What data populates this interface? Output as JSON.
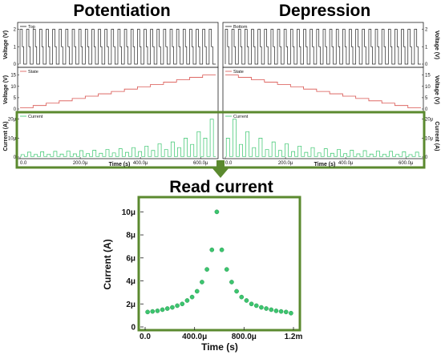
{
  "titles": {
    "potentiation": "Potentiation",
    "depression": "Depression",
    "read_current": "Read current"
  },
  "colors": {
    "panel_border": "#5b8a2f",
    "arrow": "#5b8a2f",
    "pulse_line": "#222222",
    "state_line": "#d9534f",
    "current_line": "#35c46a",
    "dot": "#3cc56f"
  },
  "chart_data": [
    {
      "type": "line",
      "panel": "potentiation-voltage",
      "legend": "Top",
      "ylabel": "Voltage (V)",
      "yticks": [
        "0",
        "1",
        "2"
      ],
      "ylim": [
        0,
        2.3
      ],
      "xlim": [
        0,
        650
      ],
      "pulse_count": 30,
      "pulse_levels": [
        0,
        1,
        2
      ]
    },
    {
      "type": "line",
      "panel": "depression-voltage",
      "legend": "Bottom",
      "ylabel": "Voltage (V)",
      "yticks": [
        "0",
        "1",
        "2"
      ],
      "ylim": [
        0,
        2.3
      ],
      "xlim": [
        0,
        650
      ],
      "pulse_count": 30,
      "pulse_levels": [
        0,
        1,
        2
      ]
    },
    {
      "type": "line",
      "panel": "potentiation-state",
      "legend": "State",
      "ylabel": "Voltage (V)",
      "yticks": [
        "0",
        "5",
        "10",
        "15"
      ],
      "ylim": [
        0,
        17
      ],
      "xlim": [
        0,
        650
      ],
      "start": 0.5,
      "end": 15
    },
    {
      "type": "line",
      "panel": "depression-state",
      "legend": "State",
      "ylabel": "Voltage (V)",
      "yticks": [
        "0",
        "5",
        "10",
        "15"
      ],
      "ylim": [
        0,
        17
      ],
      "xlim": [
        0,
        650
      ],
      "start": 15,
      "end": 0.5
    },
    {
      "type": "line",
      "panel": "potentiation-current",
      "legend": "Current",
      "ylabel": "Current (A)",
      "xlabel": "Time (s)",
      "yticks": [
        "0",
        "10μ",
        "20μ"
      ],
      "xticks": [
        "0.0",
        "200.0μ",
        "400.0μ",
        "600.0μ"
      ],
      "xtick_values": [
        0,
        200,
        400,
        600
      ],
      "ylim": [
        0,
        22
      ],
      "xlim": [
        0,
        650
      ],
      "read_level": [
        1.3,
        1.4,
        1.5,
        1.6,
        1.7,
        1.8,
        2.0,
        2.2,
        2.5,
        2.9,
        3.5,
        4.0,
        5.0,
        6.7,
        10.0
      ],
      "write_level": [
        2.6,
        2.8,
        3.0,
        3.2,
        3.4,
        3.6,
        4.0,
        4.4,
        5.0,
        5.8,
        7.0,
        8.0,
        10.0,
        13.4,
        20.0
      ]
    },
    {
      "type": "line",
      "panel": "depression-current",
      "legend": "Current",
      "ylabel": "Current (A)",
      "xlabel": "Time (s)",
      "yticks": [
        "0",
        "10μ",
        "20μ"
      ],
      "xticks": [
        "0.0",
        "200.0μ",
        "400.0μ",
        "600.0μ"
      ],
      "xtick_values": [
        0,
        200,
        400,
        600
      ],
      "ylim": [
        0,
        22
      ],
      "xlim": [
        0,
        650
      ],
      "read_level": [
        10.0,
        6.7,
        5.0,
        4.0,
        3.5,
        2.9,
        2.5,
        2.2,
        2.0,
        1.8,
        1.7,
        1.6,
        1.5,
        1.4,
        1.3
      ],
      "write_level": [
        20.0,
        13.4,
        10.0,
        8.0,
        7.0,
        5.8,
        5.0,
        4.4,
        4.0,
        3.6,
        3.4,
        3.2,
        3.0,
        2.8,
        2.6
      ]
    },
    {
      "type": "scatter",
      "panel": "read-current",
      "title": "Read current",
      "xlabel": "Time (s)",
      "ylabel": "Current (A)",
      "xlim": [
        0,
        1.2
      ],
      "ylim": [
        0,
        11
      ],
      "xticks": [
        "0.0",
        "400.0μ",
        "800.0μ",
        "1.2m"
      ],
      "xtick_values": [
        0,
        0.4,
        0.8,
        1.2
      ],
      "yticks": [
        "0",
        "2μ",
        "4μ",
        "6μ",
        "8μ",
        "10μ"
      ],
      "ytick_values": [
        0,
        2,
        4,
        6,
        8,
        10
      ],
      "x": [
        0.02,
        0.06,
        0.1,
        0.14,
        0.18,
        0.22,
        0.26,
        0.3,
        0.34,
        0.38,
        0.42,
        0.46,
        0.5,
        0.54,
        0.58,
        0.62,
        0.66,
        0.7,
        0.74,
        0.78,
        0.82,
        0.86,
        0.9,
        0.94,
        0.98,
        1.02,
        1.06,
        1.1,
        1.14,
        1.18
      ],
      "y": [
        1.3,
        1.35,
        1.4,
        1.5,
        1.6,
        1.7,
        1.85,
        2.0,
        2.3,
        2.6,
        3.1,
        3.9,
        5.0,
        6.7,
        10.0,
        6.7,
        5.0,
        3.9,
        3.1,
        2.6,
        2.3,
        2.0,
        1.85,
        1.7,
        1.6,
        1.5,
        1.4,
        1.35,
        1.3,
        1.2
      ]
    }
  ]
}
